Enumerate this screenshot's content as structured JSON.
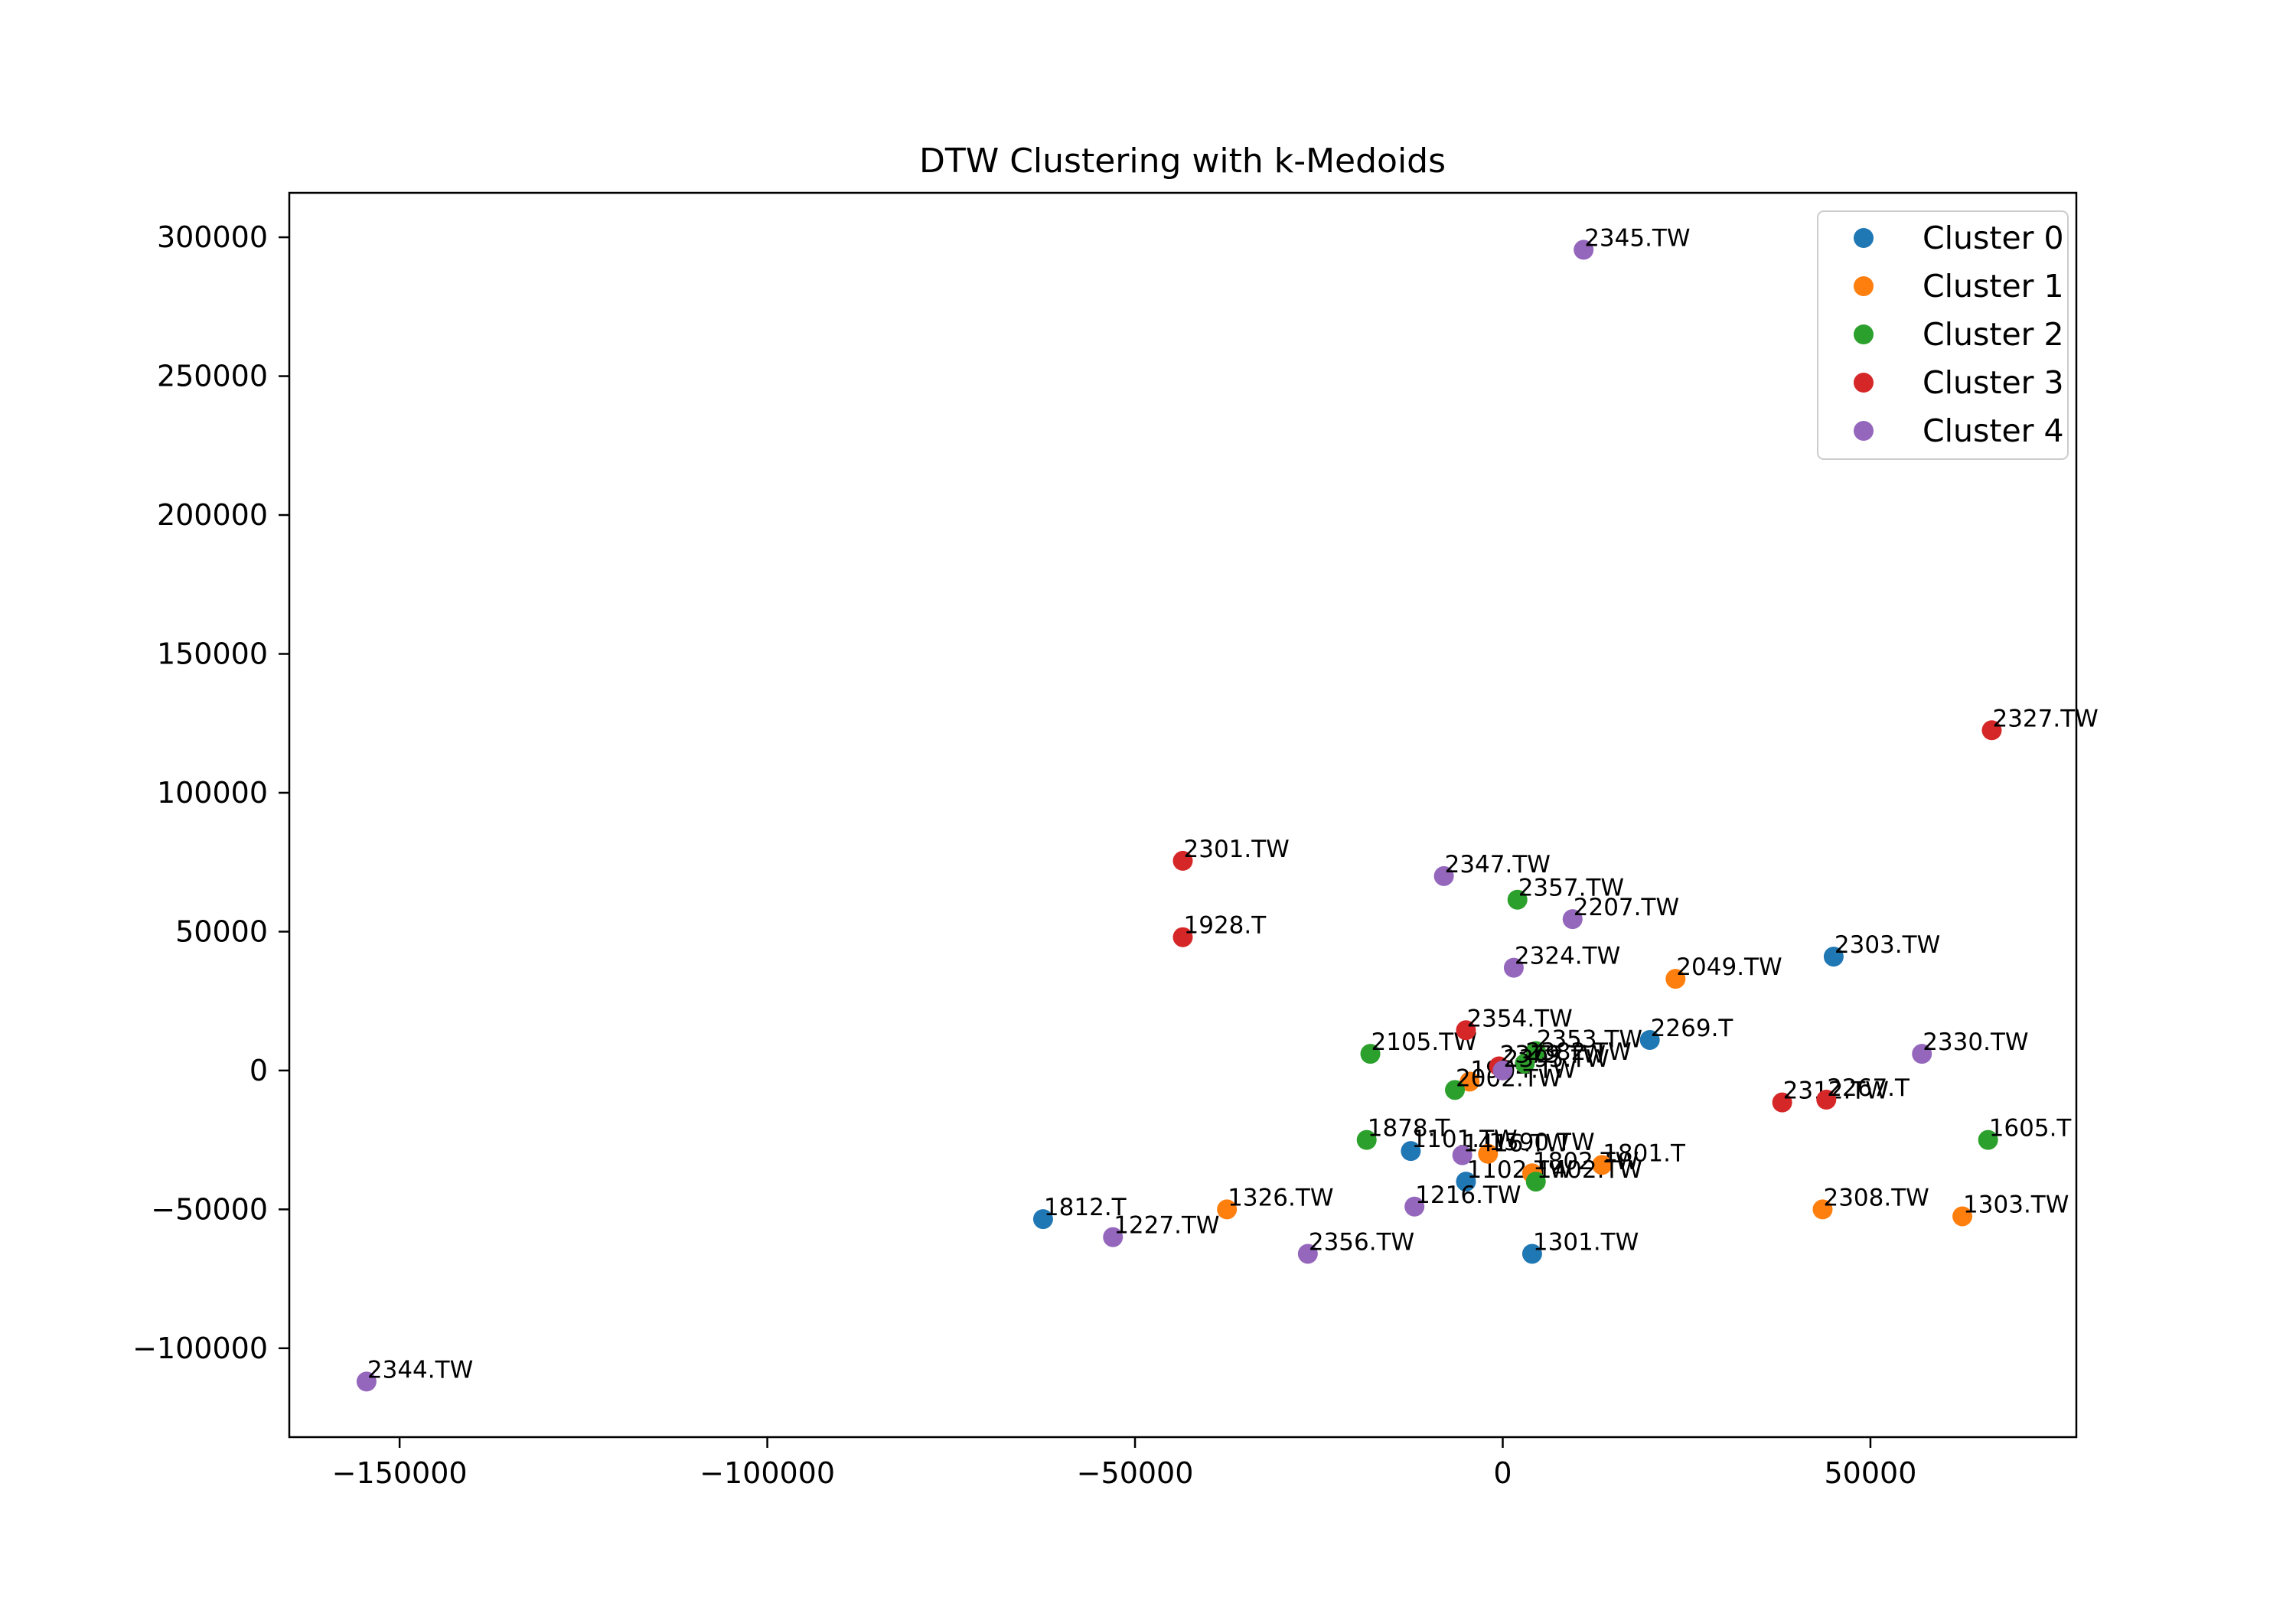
{
  "chart_data": {
    "type": "scatter",
    "title": "DTW Clustering with k-Medoids",
    "xlabel": "",
    "ylabel": "",
    "xlim": [
      -165000,
      78000
    ],
    "ylim": [
      -132000,
      316000
    ],
    "x_ticks": [
      -150000,
      -100000,
      -50000,
      0,
      50000
    ],
    "x_tick_labels": [
      "−150000",
      "−100000",
      "−50000",
      "0",
      "50000"
    ],
    "y_ticks": [
      -100000,
      -50000,
      0,
      50000,
      100000,
      150000,
      200000,
      250000,
      300000
    ],
    "y_tick_labels": [
      "−100000",
      "−50000",
      "0",
      "50000",
      "100000",
      "150000",
      "200000",
      "250000",
      "300000"
    ],
    "grid": false,
    "legend_position": "top-right",
    "series": [
      {
        "name": "Cluster 0",
        "color": "#1f77b4",
        "points": [
          {
            "label": "2303.TW",
            "x": 45000,
            "y": 41000
          },
          {
            "label": "2269.T",
            "x": 20000,
            "y": 11000
          },
          {
            "label": "1101.TW",
            "x": -12500,
            "y": -29000
          },
          {
            "label": "1102.TW",
            "x": -5000,
            "y": -40000
          },
          {
            "label": "1812.T",
            "x": -62500,
            "y": -53500
          },
          {
            "label": "1301.TW",
            "x": 4000,
            "y": -66000
          }
        ]
      },
      {
        "name": "Cluster 1",
        "color": "#ff7f0e",
        "points": [
          {
            "label": "2049.TW",
            "x": 23500,
            "y": 33000
          },
          {
            "label": "1904.TW",
            "x": -4500,
            "y": -4000
          },
          {
            "label": "1590.TW",
            "x": -2000,
            "y": -30000
          },
          {
            "label": "1802.TW",
            "x": 4000,
            "y": -37000
          },
          {
            "label": "1801.T",
            "x": 13500,
            "y": -34000
          },
          {
            "label": "1326.TW",
            "x": -37500,
            "y": -50000
          },
          {
            "label": "2308.TW",
            "x": 43500,
            "y": -50000
          },
          {
            "label": "1303.TW",
            "x": 62500,
            "y": -52500
          }
        ]
      },
      {
        "name": "Cluster 2",
        "color": "#2ca02c",
        "points": [
          {
            "label": "2357.TW",
            "x": 2000,
            "y": 61500
          },
          {
            "label": "2105.TW",
            "x": -18000,
            "y": 6000
          },
          {
            "label": "2353.TW",
            "x": 4500,
            "y": 7000
          },
          {
            "label": "2382.TW",
            "x": 3000,
            "y": 2500
          },
          {
            "label": "2002.TW",
            "x": -6500,
            "y": -7000
          },
          {
            "label": "1878.T",
            "x": -18500,
            "y": -25000
          },
          {
            "label": "1402.TW",
            "x": 4500,
            "y": -40000
          },
          {
            "label": "1605.T",
            "x": 66000,
            "y": -25000
          }
        ]
      },
      {
        "name": "Cluster 3",
        "color": "#d62728",
        "points": [
          {
            "label": "2327.TW",
            "x": 66500,
            "y": 122500
          },
          {
            "label": "2301.TW",
            "x": -43500,
            "y": 75500
          },
          {
            "label": "1928.T",
            "x": -43500,
            "y": 48000
          },
          {
            "label": "2354.TW",
            "x": -5000,
            "y": 14500
          },
          {
            "label": "2379.TW",
            "x": -500,
            "y": 1500
          },
          {
            "label": "2312.TW",
            "x": 38000,
            "y": -11500
          },
          {
            "label": "2267.T",
            "x": 44000,
            "y": -10500
          }
        ]
      },
      {
        "name": "Cluster 4",
        "color": "#9467bd",
        "points": [
          {
            "label": "2345.TW",
            "x": 11000,
            "y": 295500
          },
          {
            "label": "2347.TW",
            "x": -8000,
            "y": 70000
          },
          {
            "label": "2207.TW",
            "x": 9500,
            "y": 54500
          },
          {
            "label": "2324.TW",
            "x": 1500,
            "y": 37000
          },
          {
            "label": "2330.TW",
            "x": 57000,
            "y": 6000
          },
          {
            "label": "2395.TW",
            "x": 0,
            "y": 0
          },
          {
            "label": "1416.TW",
            "x": -5500,
            "y": -30500
          },
          {
            "label": "1216.TW",
            "x": -12000,
            "y": -49000
          },
          {
            "label": "1227.TW",
            "x": -53000,
            "y": -60000
          },
          {
            "label": "2356.TW",
            "x": -26500,
            "y": -66000
          },
          {
            "label": "2344.TW",
            "x": -154500,
            "y": -112000
          }
        ]
      }
    ]
  }
}
